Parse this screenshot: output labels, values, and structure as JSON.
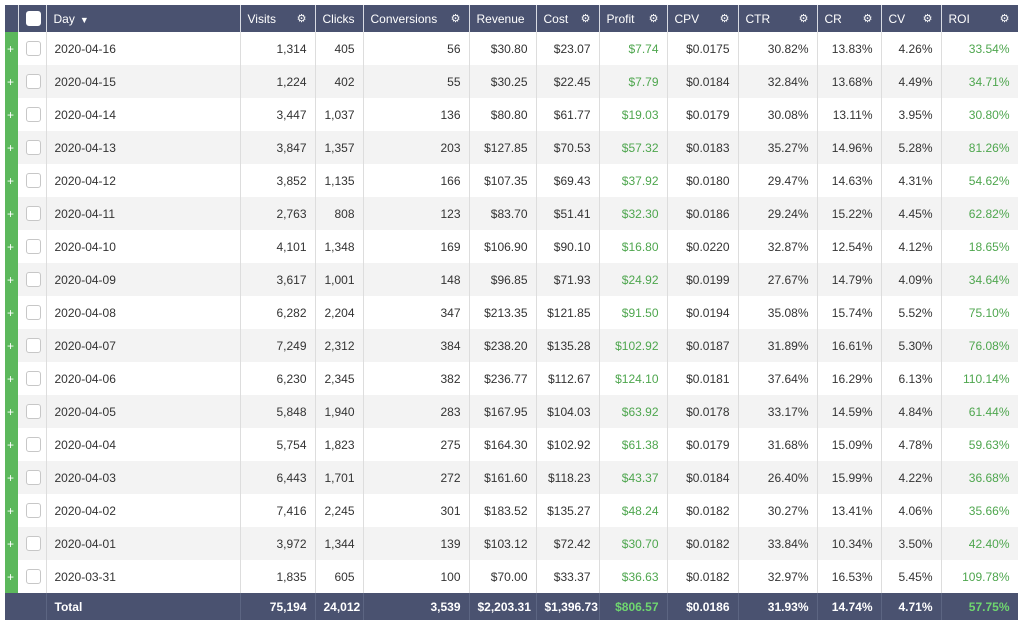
{
  "colors": {
    "header_bg": "#4a5270",
    "positive": "#4ea64e",
    "expander": "#5cb85c"
  },
  "icons": {
    "expand": "plus-icon",
    "settings": "gear-icon",
    "sort": "caret-down-icon"
  },
  "headers": {
    "day": "Day",
    "visits": "Visits",
    "clicks": "Clicks",
    "conversions": "Conversions",
    "revenue": "Revenue",
    "cost": "Cost",
    "profit": "Profit",
    "cpv": "CPV",
    "ctr": "CTR",
    "cr": "CR",
    "cv": "CV",
    "roi": "ROI"
  },
  "rows": [
    {
      "day": "2020-04-16",
      "visits": "1,314",
      "clicks": "405",
      "conversions": "56",
      "revenue": "$30.80",
      "cost": "$23.07",
      "profit": "$7.74",
      "cpv": "$0.0175",
      "ctr": "30.82%",
      "cr": "13.83%",
      "cv": "4.26%",
      "roi": "33.54%"
    },
    {
      "day": "2020-04-15",
      "visits": "1,224",
      "clicks": "402",
      "conversions": "55",
      "revenue": "$30.25",
      "cost": "$22.45",
      "profit": "$7.79",
      "cpv": "$0.0184",
      "ctr": "32.84%",
      "cr": "13.68%",
      "cv": "4.49%",
      "roi": "34.71%"
    },
    {
      "day": "2020-04-14",
      "visits": "3,447",
      "clicks": "1,037",
      "conversions": "136",
      "revenue": "$80.80",
      "cost": "$61.77",
      "profit": "$19.03",
      "cpv": "$0.0179",
      "ctr": "30.08%",
      "cr": "13.11%",
      "cv": "3.95%",
      "roi": "30.80%"
    },
    {
      "day": "2020-04-13",
      "visits": "3,847",
      "clicks": "1,357",
      "conversions": "203",
      "revenue": "$127.85",
      "cost": "$70.53",
      "profit": "$57.32",
      "cpv": "$0.0183",
      "ctr": "35.27%",
      "cr": "14.96%",
      "cv": "5.28%",
      "roi": "81.26%"
    },
    {
      "day": "2020-04-12",
      "visits": "3,852",
      "clicks": "1,135",
      "conversions": "166",
      "revenue": "$107.35",
      "cost": "$69.43",
      "profit": "$37.92",
      "cpv": "$0.0180",
      "ctr": "29.47%",
      "cr": "14.63%",
      "cv": "4.31%",
      "roi": "54.62%"
    },
    {
      "day": "2020-04-11",
      "visits": "2,763",
      "clicks": "808",
      "conversions": "123",
      "revenue": "$83.70",
      "cost": "$51.41",
      "profit": "$32.30",
      "cpv": "$0.0186",
      "ctr": "29.24%",
      "cr": "15.22%",
      "cv": "4.45%",
      "roi": "62.82%"
    },
    {
      "day": "2020-04-10",
      "visits": "4,101",
      "clicks": "1,348",
      "conversions": "169",
      "revenue": "$106.90",
      "cost": "$90.10",
      "profit": "$16.80",
      "cpv": "$0.0220",
      "ctr": "32.87%",
      "cr": "12.54%",
      "cv": "4.12%",
      "roi": "18.65%"
    },
    {
      "day": "2020-04-09",
      "visits": "3,617",
      "clicks": "1,001",
      "conversions": "148",
      "revenue": "$96.85",
      "cost": "$71.93",
      "profit": "$24.92",
      "cpv": "$0.0199",
      "ctr": "27.67%",
      "cr": "14.79%",
      "cv": "4.09%",
      "roi": "34.64%"
    },
    {
      "day": "2020-04-08",
      "visits": "6,282",
      "clicks": "2,204",
      "conversions": "347",
      "revenue": "$213.35",
      "cost": "$121.85",
      "profit": "$91.50",
      "cpv": "$0.0194",
      "ctr": "35.08%",
      "cr": "15.74%",
      "cv": "5.52%",
      "roi": "75.10%"
    },
    {
      "day": "2020-04-07",
      "visits": "7,249",
      "clicks": "2,312",
      "conversions": "384",
      "revenue": "$238.20",
      "cost": "$135.28",
      "profit": "$102.92",
      "cpv": "$0.0187",
      "ctr": "31.89%",
      "cr": "16.61%",
      "cv": "5.30%",
      "roi": "76.08%"
    },
    {
      "day": "2020-04-06",
      "visits": "6,230",
      "clicks": "2,345",
      "conversions": "382",
      "revenue": "$236.77",
      "cost": "$112.67",
      "profit": "$124.10",
      "cpv": "$0.0181",
      "ctr": "37.64%",
      "cr": "16.29%",
      "cv": "6.13%",
      "roi": "110.14%"
    },
    {
      "day": "2020-04-05",
      "visits": "5,848",
      "clicks": "1,940",
      "conversions": "283",
      "revenue": "$167.95",
      "cost": "$104.03",
      "profit": "$63.92",
      "cpv": "$0.0178",
      "ctr": "33.17%",
      "cr": "14.59%",
      "cv": "4.84%",
      "roi": "61.44%"
    },
    {
      "day": "2020-04-04",
      "visits": "5,754",
      "clicks": "1,823",
      "conversions": "275",
      "revenue": "$164.30",
      "cost": "$102.92",
      "profit": "$61.38",
      "cpv": "$0.0179",
      "ctr": "31.68%",
      "cr": "15.09%",
      "cv": "4.78%",
      "roi": "59.63%"
    },
    {
      "day": "2020-04-03",
      "visits": "6,443",
      "clicks": "1,701",
      "conversions": "272",
      "revenue": "$161.60",
      "cost": "$118.23",
      "profit": "$43.37",
      "cpv": "$0.0184",
      "ctr": "26.40%",
      "cr": "15.99%",
      "cv": "4.22%",
      "roi": "36.68%"
    },
    {
      "day": "2020-04-02",
      "visits": "7,416",
      "clicks": "2,245",
      "conversions": "301",
      "revenue": "$183.52",
      "cost": "$135.27",
      "profit": "$48.24",
      "cpv": "$0.0182",
      "ctr": "30.27%",
      "cr": "13.41%",
      "cv": "4.06%",
      "roi": "35.66%"
    },
    {
      "day": "2020-04-01",
      "visits": "3,972",
      "clicks": "1,344",
      "conversions": "139",
      "revenue": "$103.12",
      "cost": "$72.42",
      "profit": "$30.70",
      "cpv": "$0.0182",
      "ctr": "33.84%",
      "cr": "10.34%",
      "cv": "3.50%",
      "roi": "42.40%"
    },
    {
      "day": "2020-03-31",
      "visits": "1,835",
      "clicks": "605",
      "conversions": "100",
      "revenue": "$70.00",
      "cost": "$33.37",
      "profit": "$36.63",
      "cpv": "$0.0182",
      "ctr": "32.97%",
      "cr": "16.53%",
      "cv": "5.45%",
      "roi": "109.78%"
    }
  ],
  "totals": {
    "label": "Total",
    "visits": "75,194",
    "clicks": "24,012",
    "conversions": "3,539",
    "revenue": "$2,203.31",
    "cost": "$1,396.73",
    "profit": "$806.57",
    "cpv": "$0.0186",
    "ctr": "31.93%",
    "cr": "14.74%",
    "cv": "4.71%",
    "roi": "57.75%"
  }
}
